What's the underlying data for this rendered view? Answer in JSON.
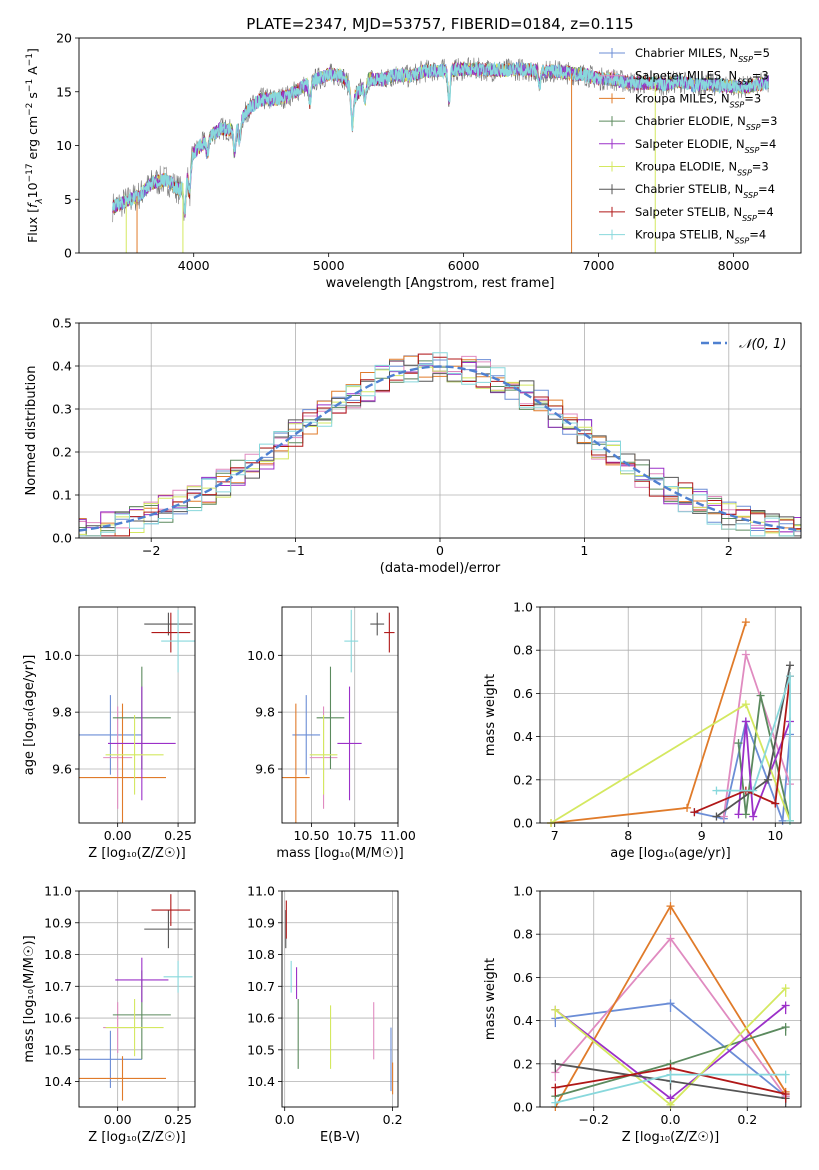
{
  "colors": {
    "chabrier_miles": "#6b8dd6",
    "salpeter_miles": "#e08bc0",
    "kroupa_miles": "#e07b2a",
    "chabrier_elodie": "#5b8a5e",
    "salpeter_elodie": "#9b30c8",
    "kroupa_elodie": "#d4e860",
    "chabrier_stelib": "#555555",
    "salpeter_stelib": "#b01818",
    "kroupa_stelib": "#88d8dc",
    "gauss": "#4f80d0",
    "grid": "#b0b0b0"
  },
  "chart_data": [
    {
      "id": "spectrum",
      "type": "line",
      "title": "PLATE=2347, MJD=53757, FIBERID=0184, z=0.115",
      "xlabel": "wavelength [Angstrom, rest frame]",
      "ylabel_parts": [
        "Flux [",
        "f",
        "λ",
        "10",
        "−17",
        " erg cm",
        "−2",
        " s",
        "−1",
        " A",
        "−1",
        "]"
      ],
      "xlim": [
        3150,
        8500
      ],
      "ylim": [
        0,
        20
      ],
      "xticks": [
        4000,
        5000,
        6000,
        7000,
        8000
      ],
      "yticks": [
        0,
        5,
        10,
        15,
        20
      ],
      "grid": false,
      "legend_position": "upper-right",
      "legend": [
        {
          "name": "Chabrier MILES, N",
          "sub": "SSP",
          "tail": "=5",
          "color_key": "chabrier_miles",
          "marker": "plus"
        },
        {
          "name": "Salpeter MILES, N",
          "sub": "SSP",
          "tail": "=3",
          "color_key": "salpeter_miles",
          "marker": "plus"
        },
        {
          "name": "Kroupa MILES, N",
          "sub": "SSP",
          "tail": "=3",
          "color_key": "kroupa_miles",
          "marker": "plus"
        },
        {
          "name": "Chabrier ELODIE, N",
          "sub": "SSP",
          "tail": "=3",
          "color_key": "chabrier_elodie",
          "marker": "plus"
        },
        {
          "name": "Salpeter ELODIE, N",
          "sub": "SSP",
          "tail": "=4",
          "color_key": "salpeter_elodie",
          "marker": "plus"
        },
        {
          "name": "Kroupa ELODIE, N",
          "sub": "SSP",
          "tail": "=3",
          "color_key": "kroupa_elodie",
          "marker": "plus"
        },
        {
          "name": "Chabrier STELIB, N",
          "sub": "SSP",
          "tail": "=4",
          "color_key": "chabrier_stelib",
          "marker": "plus"
        },
        {
          "name": "Salpeter STELIB, N",
          "sub": "SSP",
          "tail": "=4",
          "color_key": "salpeter_stelib",
          "marker": "plus"
        },
        {
          "name": "Kroupa STELIB, N",
          "sub": "SSP",
          "tail": "=4",
          "color_key": "kroupa_stelib",
          "marker": "plus"
        }
      ],
      "continuum": {
        "x": [
          3400,
          3500,
          3600,
          3700,
          3800,
          3900,
          4000,
          4100,
          4200,
          4300,
          4400,
          4500,
          4600,
          4700,
          4800,
          4900,
          5000,
          5100,
          5200,
          5300,
          5400,
          5500,
          5600,
          5700,
          5800,
          5900,
          6000,
          6100,
          6200,
          6300,
          6400,
          6500,
          6600,
          6700,
          6800,
          6900,
          7000,
          7100,
          7200,
          7300,
          7400,
          7500,
          7600,
          7700,
          7800,
          7900,
          8000,
          8100,
          8200,
          8260
        ],
        "y": [
          4.3,
          4.8,
          5.4,
          6.6,
          6.8,
          5.8,
          9.3,
          10.6,
          11.6,
          11.4,
          13.3,
          14.3,
          14.3,
          14.6,
          15.4,
          16.1,
          16.6,
          16.5,
          14.6,
          16.2,
          16.1,
          16.6,
          16.4,
          16.9,
          17.0,
          17.0,
          17.1,
          17.1,
          17.0,
          17.0,
          17.1,
          17.0,
          16.9,
          16.9,
          16.7,
          16.6,
          16.2,
          16.2,
          15.9,
          15.8,
          15.8,
          15.7,
          16.0,
          15.6,
          15.7,
          15.6,
          15.5,
          15.4,
          15.7,
          15.9
        ]
      },
      "absorption_lines": [
        {
          "x": 3934,
          "depth": 3.2
        },
        {
          "x": 3969,
          "depth": 2.8
        },
        {
          "x": 4102,
          "depth": 1.5
        },
        {
          "x": 4304,
          "depth": 2.2
        },
        {
          "x": 4340,
          "depth": 1.6
        },
        {
          "x": 4861,
          "depth": 1.8
        },
        {
          "x": 5175,
          "depth": 3.2
        },
        {
          "x": 5270,
          "depth": 1.5
        },
        {
          "x": 5892,
          "depth": 2.8
        },
        {
          "x": 6563,
          "depth": 1.2
        }
      ],
      "spikes": [
        {
          "x": 3500,
          "to": 0
        },
        {
          "x": 3580,
          "to": 0
        },
        {
          "x": 3920,
          "to": 0
        },
        {
          "x": 6800,
          "to": 0
        },
        {
          "x": 7420,
          "to": 0
        }
      ]
    },
    {
      "id": "residuals",
      "type": "histogram",
      "xlabel": "(data-model)/error",
      "ylabel": "Normed distribution",
      "xlim": [
        -2.5,
        2.5
      ],
      "ylim": [
        0,
        0.5
      ],
      "xticks": [
        -2,
        -1,
        0,
        1,
        2
      ],
      "xtick_labels": [
        "−2",
        "−1",
        "0",
        "1",
        "2"
      ],
      "yticks": [
        0.0,
        0.1,
        0.2,
        0.3,
        0.4,
        0.5
      ],
      "ytick_labels": [
        "0.0",
        "0.1",
        "0.2",
        "0.3",
        "0.4",
        "0.5"
      ],
      "grid": true,
      "legend_position": "upper-right",
      "bin_width": 0.1,
      "bin_start": -2.5,
      "gauss_label": "𝒩(0, 1)",
      "series_keys": [
        "chabrier_miles",
        "salpeter_miles",
        "kroupa_miles",
        "chabrier_elodie",
        "salpeter_elodie",
        "kroupa_elodie",
        "chabrier_stelib",
        "salpeter_stelib",
        "kroupa_stelib"
      ],
      "noise_amplitude": 0.035
    },
    {
      "id": "z-age",
      "type": "errorbar",
      "xlabel": "Z [log₁₀(Z/Z☉)]",
      "ylabel": "age  [log₁₀(age/yr)]",
      "xlim": [
        -0.16,
        0.32
      ],
      "ylim": [
        9.41,
        10.17
      ],
      "xticks": [
        0.0,
        0.25
      ],
      "xtick_labels": [
        "0.00",
        "0.25"
      ],
      "yticks": [
        9.6,
        9.8,
        10.0
      ],
      "ytick_labels": [
        "9.6",
        "9.8",
        "10.0"
      ],
      "grid": true,
      "points": [
        {
          "key": "chabrier_miles",
          "x": -0.03,
          "xerr": 0.13,
          "y": 9.72,
          "yerr": 0.14
        },
        {
          "key": "salpeter_miles",
          "x": 0.0,
          "xerr": 0.06,
          "y": 9.64,
          "yerr": 0.18
        },
        {
          "key": "kroupa_miles",
          "x": 0.02,
          "xerr": 0.18,
          "y": 9.57,
          "yerr": 0.26
        },
        {
          "key": "chabrier_elodie",
          "x": 0.1,
          "xerr": 0.12,
          "y": 9.78,
          "yerr": 0.18
        },
        {
          "key": "salpeter_elodie",
          "x": 0.1,
          "xerr": 0.14,
          "y": 9.69,
          "yerr": 0.2
        },
        {
          "key": "kroupa_elodie",
          "x": 0.07,
          "xerr": 0.12,
          "y": 9.65,
          "yerr": 0.14
        },
        {
          "key": "chabrier_stelib",
          "x": 0.21,
          "xerr": 0.1,
          "y": 10.11,
          "yerr": 0.04
        },
        {
          "key": "salpeter_stelib",
          "x": 0.22,
          "xerr": 0.08,
          "y": 10.08,
          "yerr": 0.07
        },
        {
          "key": "kroupa_stelib",
          "x": 0.25,
          "xerr": 0.07,
          "y": 10.05,
          "yerr": 0.11
        }
      ]
    },
    {
      "id": "mass-age",
      "type": "errorbar",
      "xlabel": "mass [log₁₀(M/M☉)]",
      "ylabel": "",
      "xlim": [
        10.33,
        11.0
      ],
      "ylim": [
        9.41,
        10.17
      ],
      "xticks": [
        10.5,
        10.75,
        11.0
      ],
      "xtick_labels": [
        "10.50",
        "10.75",
        "11.00"
      ],
      "yticks": [
        9.6,
        9.8,
        10.0
      ],
      "ytick_labels": [
        "9.6",
        "9.8",
        "10.0"
      ],
      "grid": true,
      "points": [
        {
          "key": "chabrier_miles",
          "x": 10.47,
          "xerr": 0.08,
          "y": 9.72,
          "yerr": 0.14
        },
        {
          "key": "salpeter_miles",
          "x": 10.57,
          "xerr": 0.08,
          "y": 9.64,
          "yerr": 0.18
        },
        {
          "key": "kroupa_miles",
          "x": 10.41,
          "xerr": 0.08,
          "y": 9.57,
          "yerr": 0.26
        },
        {
          "key": "chabrier_elodie",
          "x": 10.61,
          "xerr": 0.08,
          "y": 9.78,
          "yerr": 0.18
        },
        {
          "key": "salpeter_elodie",
          "x": 10.72,
          "xerr": 0.07,
          "y": 9.69,
          "yerr": 0.2
        },
        {
          "key": "kroupa_elodie",
          "x": 10.57,
          "xerr": 0.08,
          "y": 9.65,
          "yerr": 0.14
        },
        {
          "key": "chabrier_stelib",
          "x": 10.88,
          "xerr": 0.04,
          "y": 10.11,
          "yerr": 0.04
        },
        {
          "key": "salpeter_stelib",
          "x": 10.95,
          "xerr": 0.03,
          "y": 10.08,
          "yerr": 0.07
        },
        {
          "key": "kroupa_stelib",
          "x": 10.73,
          "xerr": 0.04,
          "y": 10.05,
          "yerr": 0.11
        }
      ]
    },
    {
      "id": "age-weight",
      "type": "line",
      "xlabel": "age  [log₁₀(age/yr)]",
      "ylabel": "mass weight",
      "xlim": [
        6.8,
        10.35
      ],
      "ylim": [
        0,
        1
      ],
      "xticks": [
        7,
        8,
        9,
        10
      ],
      "xtick_labels": [
        "7",
        "8",
        "9",
        "10"
      ],
      "yticks": [
        0.0,
        0.2,
        0.4,
        0.6,
        0.8,
        1.0
      ],
      "ytick_labels": [
        "0.0",
        "0.2",
        "0.4",
        "0.6",
        "0.8",
        "1.0"
      ],
      "grid": true,
      "series": [
        {
          "key": "chabrier_miles",
          "x": [
            8.9,
            9.3,
            9.6,
            10.1,
            10.2
          ],
          "y": [
            0.05,
            0.02,
            0.47,
            0.01,
            0.41
          ]
        },
        {
          "key": "salpeter_miles",
          "x": [
            9.3,
            9.6,
            10.2
          ],
          "y": [
            0.03,
            0.78,
            0.18
          ]
        },
        {
          "key": "kroupa_miles",
          "x": [
            6.95,
            8.8,
            9.6
          ],
          "y": [
            0.0,
            0.07,
            0.93
          ]
        },
        {
          "key": "chabrier_elodie",
          "x": [
            9.5,
            9.6,
            9.8,
            10.2
          ],
          "y": [
            0.37,
            0.04,
            0.59,
            0.01
          ]
        },
        {
          "key": "salpeter_elodie",
          "x": [
            9.5,
            9.6,
            9.7,
            10.2
          ],
          "y": [
            0.04,
            0.47,
            0.03,
            0.47
          ]
        },
        {
          "key": "kroupa_elodie",
          "x": [
            6.95,
            9.6,
            10.2
          ],
          "y": [
            0.0,
            0.55,
            0.01
          ]
        },
        {
          "key": "chabrier_stelib",
          "x": [
            9.2,
            9.9,
            10.2
          ],
          "y": [
            0.03,
            0.2,
            0.73
          ]
        },
        {
          "key": "salpeter_stelib",
          "x": [
            8.9,
            9.6,
            10.0,
            10.2
          ],
          "y": [
            0.05,
            0.15,
            0.09,
            0.68
          ]
        },
        {
          "key": "kroupa_stelib",
          "x": [
            9.2,
            9.7,
            10.2,
            10.2
          ],
          "y": [
            0.15,
            0.15,
            0.68,
            0.01
          ]
        }
      ]
    },
    {
      "id": "z-mass",
      "type": "errorbar",
      "xlabel": "Z [log₁₀(Z/Z☉)]",
      "ylabel": "mass [log₁₀(M/M☉)]",
      "xlim": [
        -0.16,
        0.32
      ],
      "ylim": [
        10.32,
        11.0
      ],
      "xticks": [
        0.0,
        0.25
      ],
      "xtick_labels": [
        "0.00",
        "0.25"
      ],
      "yticks": [
        10.4,
        10.5,
        10.6,
        10.7,
        10.8,
        10.9,
        11.0
      ],
      "ytick_labels": [
        "10.4",
        "10.5",
        "10.6",
        "10.7",
        "10.8",
        "10.9",
        "11.0"
      ],
      "grid": true,
      "points": [
        {
          "key": "chabrier_miles",
          "x": -0.03,
          "xerr": 0.13,
          "y": 10.47,
          "yerr": 0.09
        },
        {
          "key": "salpeter_miles",
          "x": 0.0,
          "xerr": 0.06,
          "y": 10.57,
          "yerr": 0.08
        },
        {
          "key": "kroupa_miles",
          "x": 0.02,
          "xerr": 0.18,
          "y": 10.41,
          "yerr": 0.07
        },
        {
          "key": "chabrier_elodie",
          "x": 0.1,
          "xerr": 0.12,
          "y": 10.61,
          "yerr": 0.14
        },
        {
          "key": "salpeter_elodie",
          "x": 0.1,
          "xerr": 0.11,
          "y": 10.72,
          "yerr": 0.07
        },
        {
          "key": "kroupa_elodie",
          "x": 0.07,
          "xerr": 0.12,
          "y": 10.57,
          "yerr": 0.09
        },
        {
          "key": "chabrier_stelib",
          "x": 0.21,
          "xerr": 0.1,
          "y": 10.88,
          "yerr": 0.06
        },
        {
          "key": "salpeter_stelib",
          "x": 0.22,
          "xerr": 0.08,
          "y": 10.94,
          "yerr": 0.05
        },
        {
          "key": "kroupa_stelib",
          "x": 0.25,
          "xerr": 0.06,
          "y": 10.73,
          "yerr": 0.05
        }
      ]
    },
    {
      "id": "ebv-mass",
      "type": "errorbar",
      "xlabel": "E(B-V)",
      "ylabel": "",
      "xlim": [
        -0.005,
        0.21
      ],
      "ylim": [
        10.32,
        11.0
      ],
      "xticks": [
        0.0,
        0.2
      ],
      "xtick_labels": [
        "0.0",
        "0.2"
      ],
      "yticks": [
        10.4,
        10.5,
        10.6,
        10.7,
        10.8,
        10.9,
        11.0
      ],
      "ytick_labels": [
        "10.4",
        "10.5",
        "10.6",
        "10.7",
        "10.8",
        "10.9",
        "11.0"
      ],
      "grid": true,
      "points": [
        {
          "key": "chabrier_miles",
          "x": 0.197,
          "xerr": 0,
          "y": 10.47,
          "yerr": 0.1
        },
        {
          "key": "salpeter_miles",
          "x": 0.165,
          "xerr": 0,
          "y": 10.56,
          "yerr": 0.09
        },
        {
          "key": "kroupa_miles",
          "x": 0.2,
          "xerr": 0,
          "y": 10.41,
          "yerr": 0.05
        },
        {
          "key": "chabrier_elodie",
          "x": 0.025,
          "xerr": 0,
          "y": 10.55,
          "yerr": 0.11
        },
        {
          "key": "salpeter_elodie",
          "x": 0.022,
          "xerr": 0,
          "y": 10.71,
          "yerr": 0.05
        },
        {
          "key": "kroupa_elodie",
          "x": 0.085,
          "xerr": 0,
          "y": 10.54,
          "yerr": 0.1
        },
        {
          "key": "chabrier_stelib",
          "x": 0.002,
          "xerr": 0,
          "y": 10.88,
          "yerr": 0.06
        },
        {
          "key": "salpeter_stelib",
          "x": 0.003,
          "xerr": 0,
          "y": 10.91,
          "yerr": 0.06
        },
        {
          "key": "kroupa_stelib",
          "x": 0.012,
          "xerr": 0,
          "y": 10.73,
          "yerr": 0.05
        }
      ]
    },
    {
      "id": "z-weight",
      "type": "line",
      "xlabel": "Z [log₁₀(Z/Z☉)]",
      "ylabel": "mass weight",
      "xlim": [
        -0.34,
        0.34
      ],
      "ylim": [
        0,
        1
      ],
      "xticks": [
        -0.2,
        0.0,
        0.2
      ],
      "xtick_labels": [
        "−0.2",
        "0.0",
        "0.2"
      ],
      "yticks": [
        0.0,
        0.2,
        0.4,
        0.6,
        0.8,
        1.0
      ],
      "ytick_labels": [
        "0.0",
        "0.2",
        "0.4",
        "0.6",
        "0.8",
        "1.0"
      ],
      "grid": true,
      "series": [
        {
          "key": "chabrier_miles",
          "x": [
            -0.3,
            0.0,
            0.3
          ],
          "y": [
            0.41,
            0.48,
            0.05
          ]
        },
        {
          "key": "salpeter_miles",
          "x": [
            -0.3,
            0.0,
            0.3
          ],
          "y": [
            0.16,
            0.78,
            0.05
          ]
        },
        {
          "key": "kroupa_miles",
          "x": [
            -0.3,
            0.0,
            0.3
          ],
          "y": [
            0.0,
            0.93,
            0.07
          ]
        },
        {
          "key": "chabrier_elodie",
          "x": [
            -0.3,
            0.0,
            0.3
          ],
          "y": [
            0.05,
            0.2,
            0.37
          ]
        },
        {
          "key": "salpeter_elodie",
          "x": [
            -0.3,
            0.0,
            0.3
          ],
          "y": [
            0.45,
            0.04,
            0.47
          ]
        },
        {
          "key": "kroupa_elodie",
          "x": [
            -0.3,
            0.0,
            0.3
          ],
          "y": [
            0.45,
            0.01,
            0.55
          ]
        },
        {
          "key": "chabrier_stelib",
          "x": [
            -0.3,
            0.0,
            0.3
          ],
          "y": [
            0.2,
            0.12,
            0.04
          ]
        },
        {
          "key": "salpeter_stelib",
          "x": [
            -0.3,
            0.0,
            0.3
          ],
          "y": [
            0.09,
            0.18,
            0.06
          ]
        },
        {
          "key": "kroupa_stelib",
          "x": [
            -0.3,
            0.0,
            0.3
          ],
          "y": [
            0.02,
            0.15,
            0.15
          ]
        }
      ]
    }
  ]
}
